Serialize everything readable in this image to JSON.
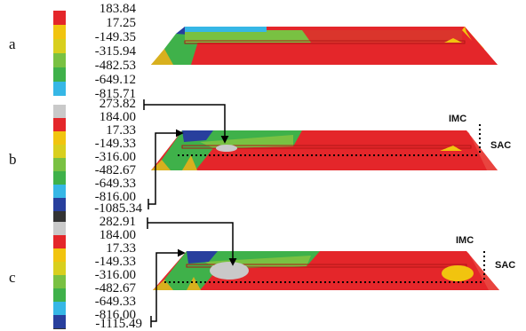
{
  "panels": [
    {
      "label": "a",
      "legend": [
        "183.84",
        "17.25",
        "-149.35",
        "-315.94",
        "-482.53",
        "-649.12",
        "-815.71"
      ],
      "colors": [
        "#e4262a",
        "#f1c40f",
        "#d8cf1e",
        "#79c142",
        "#3fb14a",
        "#36b7e6",
        "#283f9d"
      ]
    },
    {
      "label": "b",
      "legend": [
        "273.82",
        "184.00",
        "17.33",
        "-149.33",
        "-316.00",
        "-482.67",
        "-649.33",
        "-816.00",
        "-1085.34"
      ],
      "colors": [
        "#c9c9c9",
        "#e4262a",
        "#f1c40f",
        "#d8cf1e",
        "#79c142",
        "#3fb14a",
        "#36b7e6",
        "#283f9d",
        "#333333"
      ],
      "annotations": [
        "IMC",
        "SAC"
      ]
    },
    {
      "label": "c",
      "legend": [
        "282.91",
        "184.00",
        "17.33",
        "-149.33",
        "-316.00",
        "-482.67",
        "-649.33",
        "-816.00",
        "-1115.49"
      ],
      "colors": [
        "#c9c9c9",
        "#e4262a",
        "#f1c40f",
        "#d8cf1e",
        "#79c142",
        "#3fb14a",
        "#36b7e6",
        "#283f9d",
        "#333333"
      ],
      "annotations": [
        "IMC",
        "SAC"
      ]
    }
  ]
}
